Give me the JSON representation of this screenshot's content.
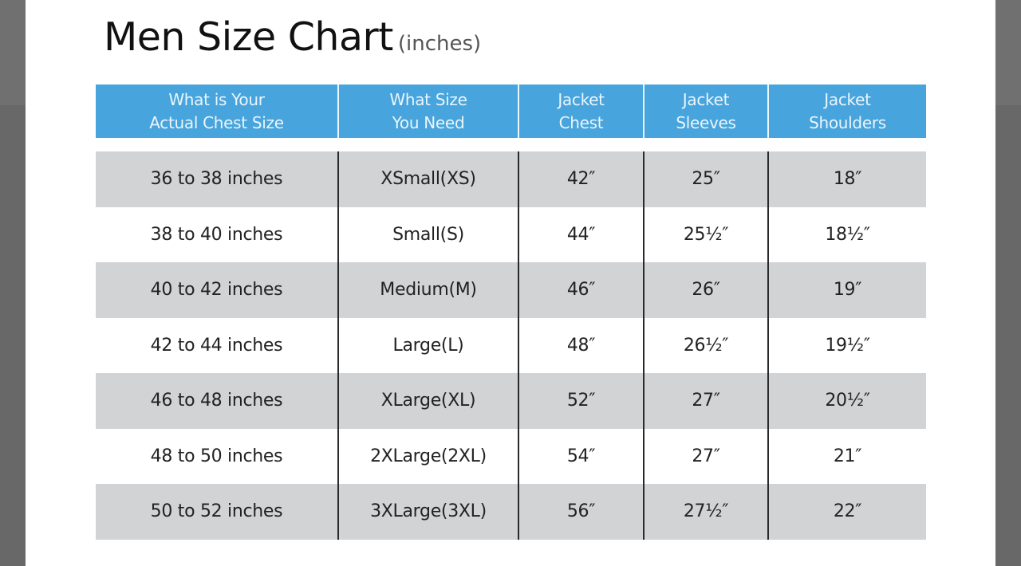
{
  "title": "Men Size Chart",
  "unit": "(inches)",
  "colors": {
    "header": "#48a4dc",
    "stripe": "#d2d3d5",
    "backdrop": "#6a6a6a"
  },
  "headers": [
    [
      "What is Your",
      "Actual Chest Size"
    ],
    [
      "What Size",
      "You Need"
    ],
    [
      "Jacket",
      "Chest"
    ],
    [
      "Jacket",
      "Sleeves"
    ],
    [
      "Jacket",
      "Shoulders"
    ]
  ],
  "rows": [
    [
      "36 to 38 inches",
      "XSmall(XS)",
      "42″",
      "25″",
      "18″"
    ],
    [
      "38 to 40 inches",
      "Small(S)",
      "44″",
      "25½″",
      "18½″"
    ],
    [
      "40 to 42 inches",
      "Medium(M)",
      "46″",
      "26″",
      "19″"
    ],
    [
      "42 to 44 inches",
      "Large(L)",
      "48″",
      "26½″",
      "19½″"
    ],
    [
      "46 to 48 inches",
      "XLarge(XL)",
      "52″",
      "27″",
      "20½″"
    ],
    [
      "48 to 50 inches",
      "2XLarge(2XL)",
      "54″",
      "27″",
      "21″"
    ],
    [
      "50 to 52 inches",
      "3XLarge(3XL)",
      "56″",
      "27½″",
      "22″"
    ]
  ]
}
